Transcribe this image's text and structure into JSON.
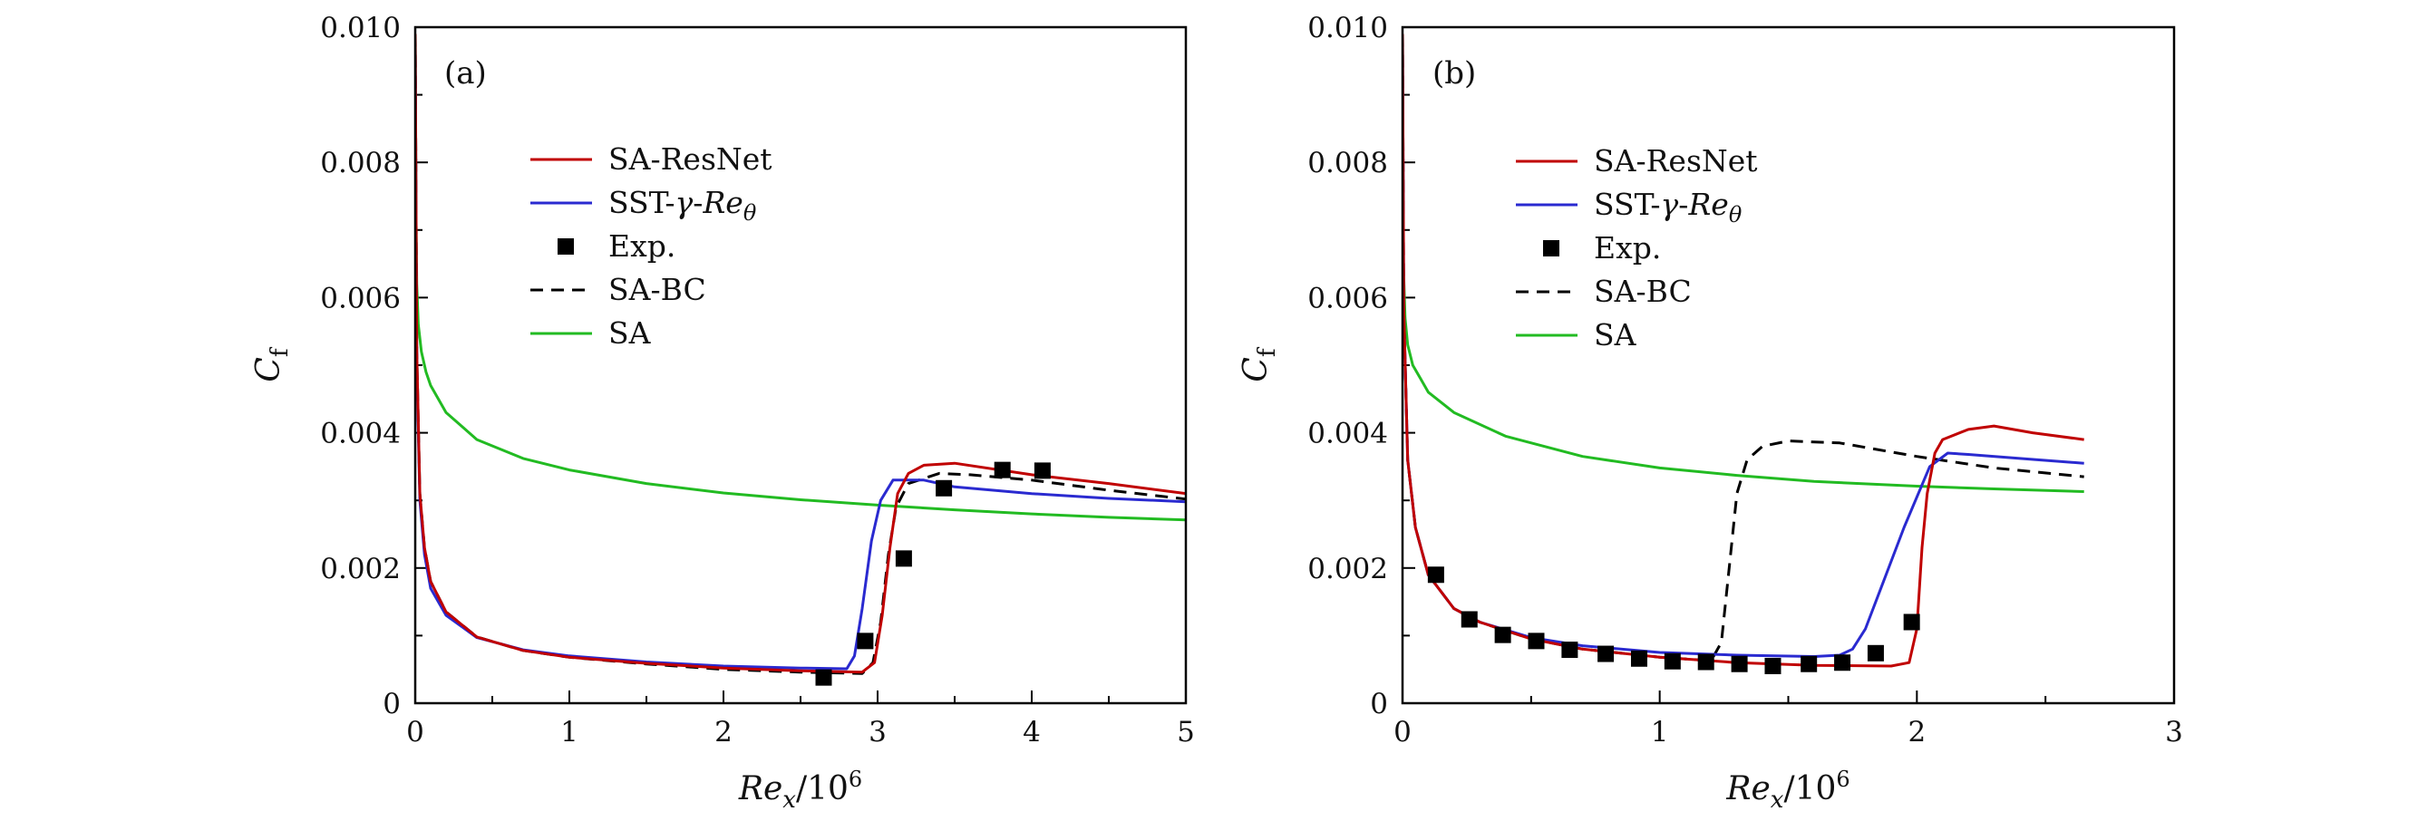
{
  "chart_data": [
    {
      "type": "line",
      "panel_label": "(a)",
      "xlabel": "Re_x/10^6",
      "ylabel": "C_f",
      "xlim": [
        0,
        5
      ],
      "ylim": [
        0,
        0.01
      ],
      "x_ticks": [
        0,
        1,
        2,
        3,
        4,
        5
      ],
      "x_tick_labels": [
        "0",
        "1",
        "2",
        "3",
        "4",
        "5"
      ],
      "y_ticks": [
        0,
        0.002,
        0.004,
        0.006,
        0.008,
        0.01
      ],
      "y_tick_labels": [
        "0",
        "0.002",
        "0.004",
        "0.006",
        "0.008",
        "0.010"
      ],
      "legend_position": "upper-left",
      "series": [
        {
          "name": "SA-ResNet",
          "color": "#c00000",
          "style": "solid",
          "x": [
            0,
            0.01,
            0.03,
            0.06,
            0.1,
            0.2,
            0.4,
            0.7,
            1.0,
            1.5,
            2.0,
            2.5,
            2.9,
            2.98,
            3.03,
            3.08,
            3.13,
            3.2,
            3.3,
            3.5,
            4.0,
            4.5,
            5.0
          ],
          "y": [
            0.0099,
            0.0052,
            0.0031,
            0.0023,
            0.0018,
            0.00135,
            0.00098,
            0.00078,
            0.00068,
            0.00059,
            0.00052,
            0.00048,
            0.00046,
            0.0006,
            0.0013,
            0.0023,
            0.0031,
            0.0034,
            0.00352,
            0.00355,
            0.00338,
            0.00325,
            0.0031
          ]
        },
        {
          "name": "SST-γ-Re_θ",
          "color": "#2a2ad0",
          "style": "solid",
          "x": [
            0,
            0.01,
            0.03,
            0.06,
            0.1,
            0.2,
            0.4,
            0.7,
            1.0,
            1.5,
            2.0,
            2.5,
            2.8,
            2.85,
            2.9,
            2.96,
            3.02,
            3.1,
            3.3,
            3.5,
            4.0,
            4.5,
            5.0
          ],
          "y": [
            0.0098,
            0.005,
            0.003,
            0.0022,
            0.0017,
            0.0013,
            0.00097,
            0.00079,
            0.0007,
            0.00061,
            0.00055,
            0.00052,
            0.00051,
            0.0007,
            0.0014,
            0.0024,
            0.003,
            0.0033,
            0.0033,
            0.0032,
            0.0031,
            0.00303,
            0.00298
          ]
        },
        {
          "name": "Exp.",
          "color": "#000000",
          "style": "markers",
          "x": [
            2.65,
            2.92,
            3.17,
            3.43,
            3.81,
            4.07
          ],
          "y": [
            0.00038,
            0.00092,
            0.00214,
            0.00318,
            0.00345,
            0.00344
          ]
        },
        {
          "name": "SA-BC",
          "color": "#000000",
          "style": "dashed",
          "x": [
            0,
            0.01,
            0.03,
            0.06,
            0.1,
            0.2,
            0.4,
            0.7,
            1.0,
            1.5,
            2.0,
            2.5,
            2.9,
            2.97,
            3.02,
            3.07,
            3.12,
            3.2,
            3.4,
            3.6,
            4.0,
            4.5,
            5.0
          ],
          "y": [
            0.0099,
            0.0052,
            0.0031,
            0.0023,
            0.0018,
            0.00135,
            0.00098,
            0.00078,
            0.00068,
            0.00058,
            0.0005,
            0.00046,
            0.00044,
            0.0006,
            0.0012,
            0.0022,
            0.0029,
            0.00325,
            0.0034,
            0.00338,
            0.0033,
            0.00315,
            0.00302
          ]
        },
        {
          "name": "SA",
          "color": "#22bb22",
          "style": "solid",
          "x": [
            0,
            0.005,
            0.01,
            0.02,
            0.04,
            0.07,
            0.1,
            0.2,
            0.4,
            0.7,
            1.0,
            1.5,
            2.0,
            2.5,
            3.0,
            3.5,
            4.0,
            4.5,
            5.0
          ],
          "y": [
            0.0099,
            0.0072,
            0.0062,
            0.0056,
            0.0052,
            0.0049,
            0.0047,
            0.0043,
            0.0039,
            0.00362,
            0.00345,
            0.00325,
            0.00311,
            0.00301,
            0.00293,
            0.00286,
            0.0028,
            0.00275,
            0.00271
          ]
        }
      ]
    },
    {
      "type": "line",
      "panel_label": "(b)",
      "xlabel": "Re_x/10^6",
      "ylabel": "C_f",
      "xlim": [
        0,
        3
      ],
      "ylim": [
        0,
        0.01
      ],
      "x_ticks": [
        0,
        1,
        2,
        3
      ],
      "x_tick_labels": [
        "0",
        "1",
        "2",
        "3"
      ],
      "y_ticks": [
        0,
        0.002,
        0.004,
        0.006,
        0.008,
        0.01
      ],
      "y_tick_labels": [
        "0",
        "0.002",
        "0.004",
        "0.006",
        "0.008",
        "0.010"
      ],
      "legend_position": "upper-left",
      "series": [
        {
          "name": "SA-ResNet",
          "color": "#c00000",
          "style": "solid",
          "x": [
            0,
            0.005,
            0.02,
            0.05,
            0.1,
            0.2,
            0.3,
            0.5,
            0.7,
            1.0,
            1.3,
            1.6,
            1.9,
            1.97,
            2.0,
            2.02,
            2.04,
            2.07,
            2.1,
            2.2,
            2.3,
            2.45,
            2.65
          ],
          "y": [
            0.0099,
            0.0058,
            0.0036,
            0.0026,
            0.0019,
            0.0014,
            0.0012,
            0.00095,
            0.0008,
            0.00068,
            0.0006,
            0.00056,
            0.00055,
            0.0006,
            0.0011,
            0.0023,
            0.0031,
            0.0037,
            0.0039,
            0.00405,
            0.0041,
            0.004,
            0.0039
          ]
        },
        {
          "name": "SST-γ-Re_θ",
          "color": "#2a2ad0",
          "style": "solid",
          "x": [
            0,
            0.005,
            0.02,
            0.05,
            0.1,
            0.2,
            0.3,
            0.5,
            0.7,
            1.0,
            1.3,
            1.6,
            1.7,
            1.75,
            1.8,
            1.87,
            1.95,
            2.05,
            2.12,
            2.2,
            2.4,
            2.65
          ],
          "y": [
            0.0099,
            0.0058,
            0.0036,
            0.0026,
            0.0019,
            0.0014,
            0.0012,
            0.00097,
            0.00085,
            0.00075,
            0.00071,
            0.00069,
            0.00071,
            0.0008,
            0.0011,
            0.0018,
            0.0026,
            0.0035,
            0.0037,
            0.00368,
            0.00362,
            0.00355
          ]
        },
        {
          "name": "Exp.",
          "color": "#000000",
          "style": "markers",
          "x": [
            0.13,
            0.26,
            0.39,
            0.52,
            0.65,
            0.79,
            0.92,
            1.05,
            1.18,
            1.31,
            1.44,
            1.58,
            1.71,
            1.84,
            1.98
          ],
          "y": [
            0.0019,
            0.00124,
            0.00101,
            0.00092,
            0.00079,
            0.00073,
            0.00066,
            0.00062,
            0.00061,
            0.00058,
            0.00055,
            0.00058,
            0.0006,
            0.00074,
            0.0012
          ]
        },
        {
          "name": "SA-BC",
          "color": "#000000",
          "style": "dashed",
          "x": [
            0,
            0.005,
            0.02,
            0.05,
            0.1,
            0.2,
            0.3,
            0.5,
            0.7,
            1.0,
            1.2,
            1.24,
            1.27,
            1.3,
            1.34,
            1.4,
            1.5,
            1.7,
            2.0,
            2.3,
            2.65
          ],
          "y": [
            0.0099,
            0.0058,
            0.0036,
            0.0026,
            0.0019,
            0.0014,
            0.0012,
            0.00095,
            0.0008,
            0.00068,
            0.00063,
            0.0009,
            0.002,
            0.0031,
            0.0036,
            0.0038,
            0.00388,
            0.00385,
            0.00365,
            0.00348,
            0.00335
          ]
        },
        {
          "name": "SA",
          "color": "#22bb22",
          "style": "solid",
          "x": [
            0,
            0.003,
            0.01,
            0.02,
            0.04,
            0.07,
            0.1,
            0.2,
            0.4,
            0.7,
            1.0,
            1.3,
            1.6,
            2.0,
            2.3,
            2.65
          ],
          "y": [
            0.0099,
            0.0065,
            0.0057,
            0.0053,
            0.005,
            0.0048,
            0.0046,
            0.0043,
            0.00395,
            0.00365,
            0.00348,
            0.00337,
            0.00328,
            0.00321,
            0.00317,
            0.00313
          ]
        }
      ]
    }
  ]
}
